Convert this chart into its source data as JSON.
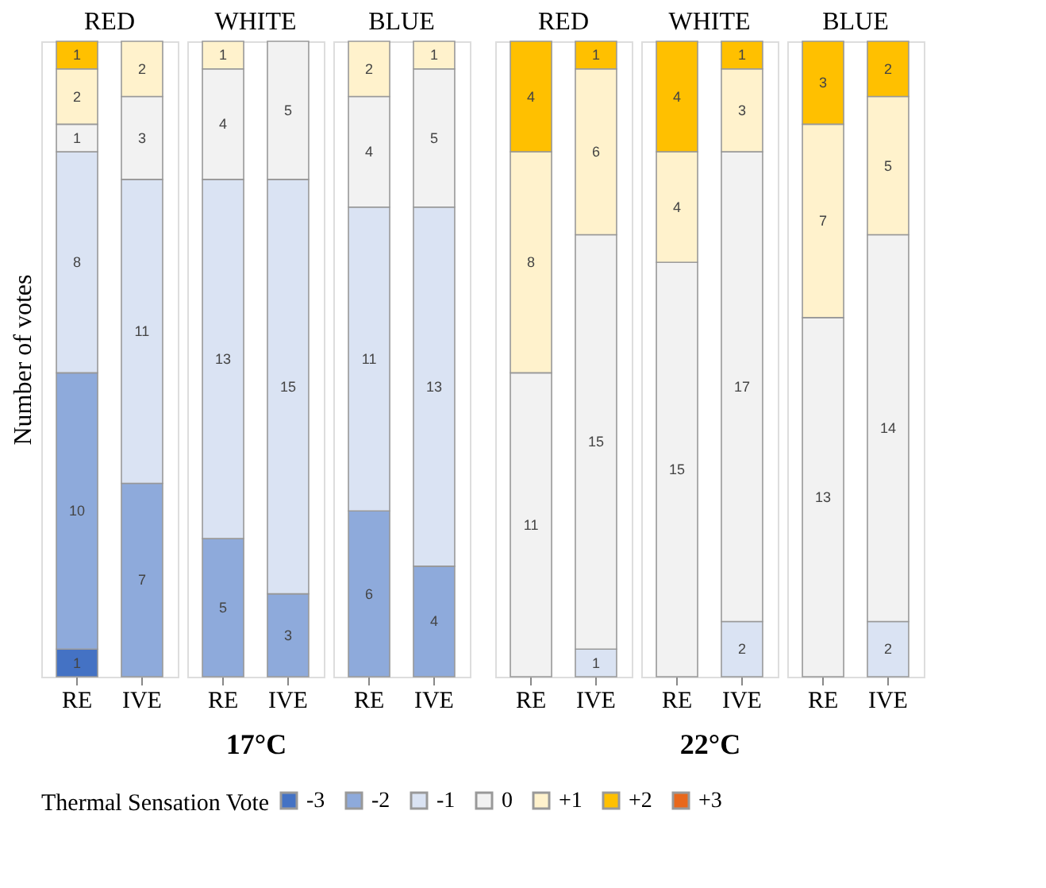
{
  "chart_data": [
    {
      "type": "bar",
      "title": "RED",
      "ylabel": "Number of votes",
      "categories": [
        "RE",
        "IVE"
      ],
      "stacked": true,
      "data_labels": true,
      "ylim": [
        0,
        23
      ],
      "tick_labels": "x",
      "legend": "bottom",
      "legend_title": "Thermal Sensation Vote",
      "series": [
        {
          "name": "-3",
          "color": "#4472c4",
          "values": [
            1,
            null
          ]
        },
        {
          "name": "-2",
          "color": "#8eaadb",
          "values": [
            10,
            7
          ]
        },
        {
          "name": "-1",
          "color": "#dae3f3",
          "values": [
            8,
            11
          ]
        },
        {
          "name": "0",
          "color": "#f2f2f2",
          "values": [
            1,
            3
          ]
        },
        {
          "name": "+1",
          "color": "#fff2cc",
          "values": [
            2,
            2
          ]
        },
        {
          "name": "+2",
          "color": "#ffc000",
          "values": [
            1,
            null
          ]
        },
        {
          "name": "+3",
          "color": "#e8681c",
          "values": [
            null,
            null
          ]
        }
      ]
    },
    {
      "type": "bar",
      "title": "WHITE",
      "xlabel": "17°C",
      "categories": [
        "RE",
        "IVE"
      ],
      "stacked": true,
      "data_labels": true,
      "ylim": [
        0,
        23
      ],
      "tick_labels": "x",
      "series": [
        {
          "name": "-3",
          "color": "#4472c4",
          "values": [
            null,
            null
          ]
        },
        {
          "name": "-2",
          "color": "#8eaadb",
          "values": [
            5,
            3
          ]
        },
        {
          "name": "-1",
          "color": "#dae3f3",
          "values": [
            13,
            15
          ]
        },
        {
          "name": "0",
          "color": "#f2f2f2",
          "values": [
            4,
            5
          ]
        },
        {
          "name": "+1",
          "color": "#fff2cc",
          "values": [
            1,
            null
          ]
        },
        {
          "name": "+2",
          "color": "#ffc000",
          "values": [
            null,
            null
          ]
        }
      ]
    },
    {
      "type": "bar",
      "title": "BLUE",
      "categories": [
        "RE",
        "IVE"
      ],
      "stacked": true,
      "data_labels": true,
      "ylim": [
        0,
        23
      ],
      "tick_labels": "x",
      "series": [
        {
          "name": "-3",
          "color": "#4472c4",
          "values": [
            null,
            null
          ]
        },
        {
          "name": "-2",
          "color": "#8eaadb",
          "values": [
            6,
            4
          ]
        },
        {
          "name": "-1",
          "color": "#dae3f3",
          "values": [
            11,
            13
          ]
        },
        {
          "name": "0",
          "color": "#f2f2f2",
          "values": [
            4,
            5
          ]
        },
        {
          "name": "+1",
          "color": "#fff2cc",
          "values": [
            2,
            1
          ]
        },
        {
          "name": "+2",
          "color": "#ffc000",
          "values": [
            null,
            null
          ]
        }
      ]
    },
    {
      "type": "bar",
      "title": "RED",
      "categories": [
        "RE",
        "IVE"
      ],
      "stacked": true,
      "data_labels": true,
      "ylim": [
        0,
        23
      ],
      "tick_labels": "x",
      "series": [
        {
          "name": "-3",
          "color": "#4472c4",
          "values": [
            null,
            null
          ]
        },
        {
          "name": "-2",
          "color": "#8eaadb",
          "values": [
            null,
            null
          ]
        },
        {
          "name": "-1",
          "color": "#dae3f3",
          "values": [
            null,
            1
          ]
        },
        {
          "name": "0",
          "color": "#f2f2f2",
          "values": [
            11,
            15
          ]
        },
        {
          "name": "+1",
          "color": "#fff2cc",
          "values": [
            8,
            6
          ]
        },
        {
          "name": "+2",
          "color": "#ffc000",
          "values": [
            4,
            1
          ]
        }
      ]
    },
    {
      "type": "bar",
      "title": "WHITE",
      "xlabel": "22°C",
      "categories": [
        "RE",
        "IVE"
      ],
      "stacked": true,
      "data_labels": true,
      "ylim": [
        0,
        23
      ],
      "tick_labels": "x",
      "series": [
        {
          "name": "-3",
          "color": "#4472c4",
          "values": [
            null,
            null
          ]
        },
        {
          "name": "-2",
          "color": "#8eaadb",
          "values": [
            null,
            null
          ]
        },
        {
          "name": "-1",
          "color": "#dae3f3",
          "values": [
            null,
            2
          ]
        },
        {
          "name": "0",
          "color": "#f2f2f2",
          "values": [
            15,
            17
          ]
        },
        {
          "name": "+1",
          "color": "#fff2cc",
          "values": [
            4,
            3
          ]
        },
        {
          "name": "+2",
          "color": "#ffc000",
          "values": [
            4,
            1
          ]
        }
      ]
    },
    {
      "type": "bar",
      "title": "BLUE",
      "categories": [
        "RE",
        "IVE"
      ],
      "stacked": true,
      "data_labels": true,
      "ylim": [
        0,
        23
      ],
      "tick_labels": "x",
      "series": [
        {
          "name": "-3",
          "color": "#4472c4",
          "values": [
            null,
            null
          ]
        },
        {
          "name": "-2",
          "color": "#8eaadb",
          "values": [
            null,
            null
          ]
        },
        {
          "name": "-1",
          "color": "#dae3f3",
          "values": [
            null,
            2
          ]
        },
        {
          "name": "0",
          "color": "#f2f2f2",
          "values": [
            13,
            14
          ]
        },
        {
          "name": "+1",
          "color": "#fff2cc",
          "values": [
            7,
            5
          ]
        },
        {
          "name": "+2",
          "color": "#ffc000",
          "values": [
            3,
            2
          ]
        }
      ]
    }
  ]
}
